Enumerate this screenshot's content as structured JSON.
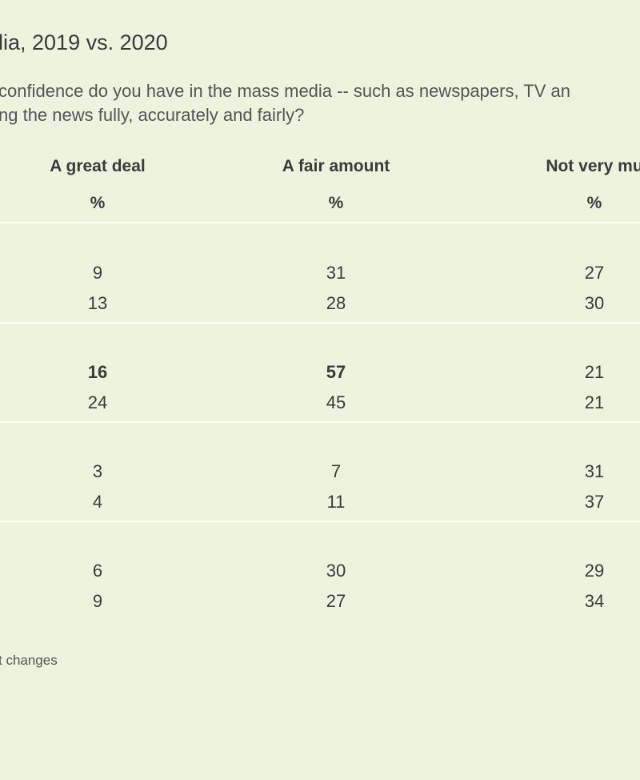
{
  "title": "lia, 2019 vs. 2020",
  "question": [
    "confidence do you have in the mass media -- such as newspapers, TV an",
    "ng the news fully, accurately and fairly?"
  ],
  "columns": [
    {
      "label": "A great deal",
      "unit": "%"
    },
    {
      "label": "A fair amount",
      "unit": "%"
    },
    {
      "label": "Not very mu",
      "unit": "%"
    }
  ],
  "groups": [
    {
      "rows": [
        [
          "9",
          "31",
          "27"
        ],
        [
          "13",
          "28",
          "30"
        ]
      ]
    },
    {
      "rows": [
        [
          "16",
          "57",
          "21"
        ],
        [
          "24",
          "45",
          "21"
        ]
      ],
      "bold_first_row_cols": [
        0,
        1
      ]
    },
    {
      "rows": [
        [
          "3",
          "7",
          "31"
        ],
        [
          "4",
          "11",
          "37"
        ]
      ]
    },
    {
      "rows": [
        [
          "6",
          "30",
          "29"
        ],
        [
          "9",
          "27",
          "34"
        ]
      ]
    }
  ],
  "footnote": "t changes"
}
